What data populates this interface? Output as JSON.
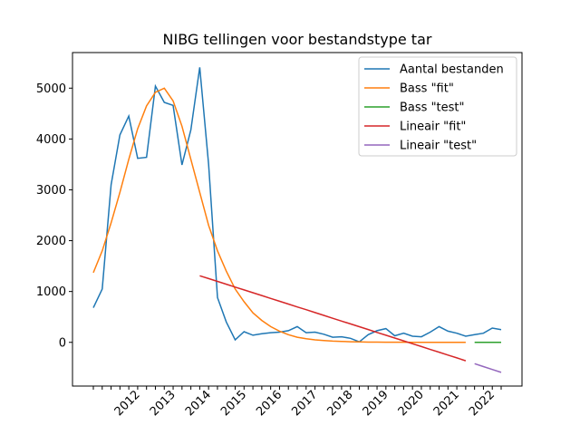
{
  "chart_data": {
    "type": "line",
    "title": "NIBG tellingen voor bestandstype tar",
    "categories": [
      null,
      null,
      null,
      null,
      null,
      "2012",
      null,
      null,
      null,
      "2013",
      null,
      null,
      null,
      "2014",
      null,
      null,
      null,
      "2015",
      null,
      null,
      null,
      "2016",
      null,
      null,
      null,
      "2017",
      null,
      null,
      null,
      "2018",
      null,
      null,
      null,
      "2019",
      null,
      null,
      null,
      "2020",
      null,
      null,
      null,
      "2021",
      null,
      null,
      null,
      "2022",
      null
    ],
    "series": [
      {
        "name": "Aantal bestanden",
        "color": "#1f77b4",
        "values": [
          680,
          1050,
          3100,
          4080,
          4450,
          3620,
          3640,
          5040,
          4720,
          4660,
          3490,
          4180,
          5410,
          3500,
          880,
          400,
          50,
          210,
          140,
          170,
          190,
          200,
          230,
          310,
          190,
          200,
          160,
          100,
          110,
          80,
          10,
          150,
          230,
          270,
          130,
          180,
          120,
          110,
          200,
          310,
          220,
          180,
          120,
          150,
          180,
          280,
          250
        ]
      },
      {
        "name": "Bass \"fit\"",
        "color": "#ff7f0e",
        "values": [
          1370,
          1800,
          2350,
          2950,
          3600,
          4200,
          4650,
          4920,
          5000,
          4750,
          4250,
          3600,
          2950,
          2300,
          1800,
          1400,
          1050,
          800,
          580,
          430,
          310,
          220,
          150,
          100,
          70,
          50,
          35,
          25,
          18,
          12,
          8,
          5,
          4,
          3,
          2,
          2,
          1,
          1,
          1,
          0,
          0,
          0,
          0,
          null,
          null,
          null,
          null
        ]
      },
      {
        "name": "Bass \"test\"",
        "color": "#2ca02c",
        "values": [
          null,
          null,
          null,
          null,
          null,
          null,
          null,
          null,
          null,
          null,
          null,
          null,
          null,
          null,
          null,
          null,
          null,
          null,
          null,
          null,
          null,
          null,
          null,
          null,
          null,
          null,
          null,
          null,
          null,
          null,
          null,
          null,
          null,
          null,
          null,
          null,
          null,
          null,
          null,
          null,
          null,
          null,
          null,
          0,
          0,
          0,
          0
        ]
      },
      {
        "name": "Lineair \"fit\"",
        "color": "#d62728",
        "values": [
          null,
          null,
          null,
          null,
          null,
          null,
          null,
          null,
          null,
          null,
          null,
          null,
          1310,
          1254,
          1199,
          1143,
          1087,
          1032,
          976,
          920,
          864,
          809,
          753,
          697,
          642,
          586,
          530,
          474,
          419,
          363,
          307,
          252,
          196,
          140,
          84,
          29,
          -27,
          -83,
          -139,
          -194,
          -250,
          -306,
          -362,
          null,
          null,
          null,
          null
        ]
      },
      {
        "name": "Lineair \"test\"",
        "color": "#9467bd",
        "values": [
          null,
          null,
          null,
          null,
          null,
          null,
          null,
          null,
          null,
          null,
          null,
          null,
          null,
          null,
          null,
          null,
          null,
          null,
          null,
          null,
          null,
          null,
          null,
          null,
          null,
          null,
          null,
          null,
          null,
          null,
          null,
          null,
          null,
          null,
          null,
          null,
          null,
          null,
          null,
          null,
          null,
          null,
          null,
          -420,
          -477,
          -533,
          -590
        ]
      }
    ],
    "ylim": [
      -860,
      5700
    ],
    "yticks": [
      0,
      1000,
      2000,
      3000,
      4000,
      5000
    ],
    "legend": "upper right"
  }
}
